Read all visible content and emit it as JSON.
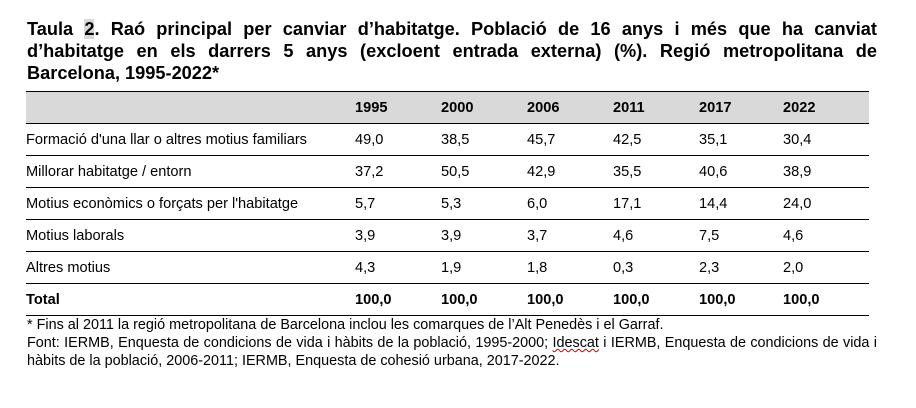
{
  "title": {
    "prefix": "Taula ",
    "number": "2",
    "text": ". Raó principal per canviar d’habitatge. Població de 16 anys i més que ha canviat d’habitatge en els darrers 5 anys (excloent entrada externa) (%). Regió metropolitana de Barcelona, 1995-2022*"
  },
  "table": {
    "years": [
      "1995",
      "2000",
      "2006",
      "2011",
      "2017",
      "2022"
    ],
    "rows": [
      {
        "label": "Formació d'una llar o altres motius familiars",
        "values": [
          "49,0",
          "38,5",
          "45,7",
          "42,5",
          "35,1",
          "30,4"
        ]
      },
      {
        "label": "Millorar habitatge / entorn",
        "values": [
          "37,2",
          "50,5",
          "42,9",
          "35,5",
          "40,6",
          "38,9"
        ]
      },
      {
        "label": "Motius econòmics o forçats per l'habitatge",
        "values": [
          "5,7",
          "5,3",
          "6,0",
          "17,1",
          "14,4",
          "24,0"
        ]
      },
      {
        "label": "Motius laborals",
        "values": [
          "3,9",
          "3,9",
          "3,7",
          "4,6",
          "7,5",
          "4,6"
        ]
      },
      {
        "label": "Altres motius",
        "values": [
          "4,3",
          "1,9",
          "1,8",
          "0,3",
          "2,3",
          "2,0"
        ]
      }
    ],
    "total": {
      "label": "Total",
      "values": [
        "100,0",
        "100,0",
        "100,0",
        "100,0",
        "100,0",
        "100,0"
      ]
    }
  },
  "notes": {
    "footnote": "* Fins al 2011 la regió metropolitana de Barcelona inclou les comarques de l’Alt Penedès i el Garraf.",
    "source_part1": "Font: IERMB, Enquesta de condicions de vida i hàbits de la població, 1995-2000; ",
    "source_idescat": "Idescat",
    "source_part2": " i IERMB, Enquesta de condicions de vida i hàbits de la població, 2006-2011; IERMB, Enquesta de cohesió urbana, 2017-2022."
  }
}
